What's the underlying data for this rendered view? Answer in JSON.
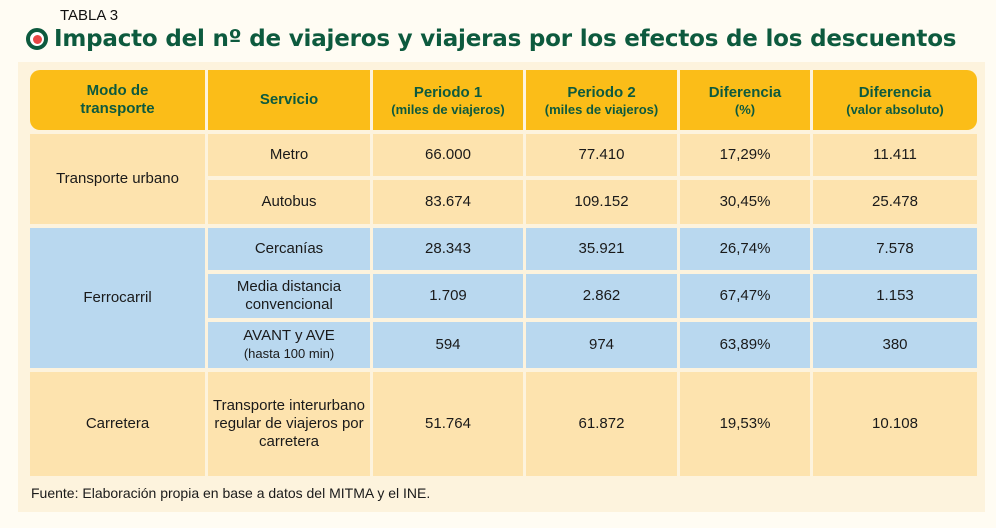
{
  "label": "TABLA 3",
  "title": "Impacto del nº de viajeros y viajeras por los efectos de los descuentos",
  "headers": [
    {
      "main": "Modo de transporte",
      "sub": ""
    },
    {
      "main": "Servicio",
      "sub": ""
    },
    {
      "main": "Periodo 1",
      "sub": "(miles de viajeros)"
    },
    {
      "main": "Periodo 2",
      "sub": "(miles de viajeros)"
    },
    {
      "main": "Diferencia",
      "sub": "(%)"
    },
    {
      "main": "Diferencia",
      "sub": "(valor absoluto)"
    }
  ],
  "groups": [
    "Transporte urbano",
    "Ferrocarril",
    "Carretera"
  ],
  "rows": [
    {
      "servicio": "Metro",
      "sub": "",
      "p1": "66.000",
      "p2": "77.410",
      "pct": "17,29%",
      "abs": "11.411"
    },
    {
      "servicio": "Autobus",
      "sub": "",
      "p1": "83.674",
      "p2": "109.152",
      "pct": "30,45%",
      "abs": "25.478"
    },
    {
      "servicio": "Cercanías",
      "sub": "",
      "p1": "28.343",
      "p2": "35.921",
      "pct": "26,74%",
      "abs": "7.578"
    },
    {
      "servicio": "Media distancia convencional",
      "sub": "",
      "p1": "1.709",
      "p2": "2.862",
      "pct": "67,47%",
      "abs": "1.153"
    },
    {
      "servicio": "AVANT y AVE",
      "sub": "(hasta 100 min)",
      "p1": "594",
      "p2": "974",
      "pct": "63,89%",
      "abs": "380"
    },
    {
      "servicio": "Transporte interurbano regular de viajeros por carretera",
      "sub": "",
      "p1": "51.764",
      "p2": "61.872",
      "pct": "19,53%",
      "abs": "10.108"
    }
  ],
  "source": "Fuente: Elaboración propia en base a datos del MITMA y el INE.",
  "colors": {
    "header": "#fbbd18",
    "urban": "#fde3ae",
    "rail": "#b9d8ef",
    "title": "#0d5a3e"
  }
}
